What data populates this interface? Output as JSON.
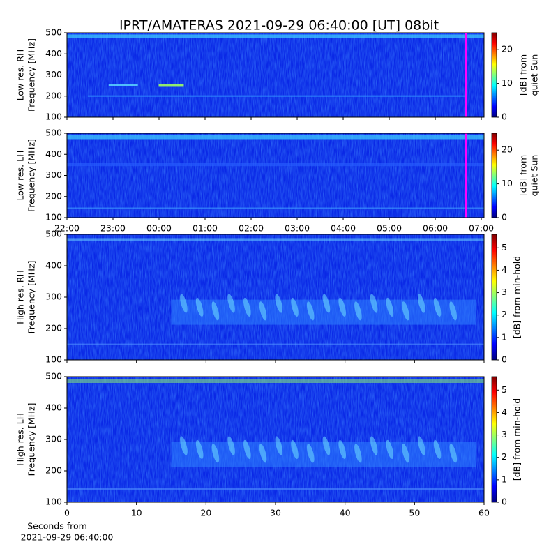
{
  "title": "IPRT/AMATERAS 2021-09-29 06:40:00 [UT]   08bit",
  "chart_data": [
    {
      "type": "spectrogram",
      "ylabel": [
        "Low res. RH",
        "Frequency [MHz]"
      ],
      "ylim": [
        100,
        500
      ],
      "yticks": [
        100,
        200,
        300,
        400,
        500
      ],
      "xlim": [
        22,
        31.06
      ],
      "xticks": [
        {
          "value": 22,
          "label": "22:00"
        },
        {
          "value": 23,
          "label": "23:00"
        },
        {
          "value": 24,
          "label": "00:00"
        },
        {
          "value": 25,
          "label": "01:00"
        },
        {
          "value": 26,
          "label": "02:00"
        },
        {
          "value": 27,
          "label": "03:00"
        },
        {
          "value": 28,
          "label": "04:00"
        },
        {
          "value": 29,
          "label": "05:00"
        },
        {
          "value": 30,
          "label": "06:00"
        },
        {
          "value": 31,
          "label": "07:00"
        }
      ],
      "xtick_labels": false,
      "marker_x": 30.667,
      "marker_color": "#ff00ff",
      "colorbar": {
        "label": [
          "[dB] from",
          "quiet Sun"
        ],
        "lim": [
          0,
          25
        ],
        "ticks": [
          0,
          10,
          20
        ],
        "colormap": "jet"
      }
    },
    {
      "type": "spectrogram",
      "ylabel": [
        "Low res. LH",
        "Frequency [MHz]"
      ],
      "ylim": [
        100,
        500
      ],
      "yticks": [
        100,
        200,
        300,
        400,
        500
      ],
      "xlim": [
        22,
        31.06
      ],
      "xticks": [
        {
          "value": 22,
          "label": "22:00"
        },
        {
          "value": 23,
          "label": "23:00"
        },
        {
          "value": 24,
          "label": "00:00"
        },
        {
          "value": 25,
          "label": "01:00"
        },
        {
          "value": 26,
          "label": "02:00"
        },
        {
          "value": 27,
          "label": "03:00"
        },
        {
          "value": 28,
          "label": "04:00"
        },
        {
          "value": 29,
          "label": "05:00"
        },
        {
          "value": 30,
          "label": "06:00"
        },
        {
          "value": 31,
          "label": "07:00"
        }
      ],
      "xtick_labels": true,
      "marker_x": 30.667,
      "marker_color": "#ff00ff",
      "colorbar": {
        "label": [
          "[dB] from",
          "quiet Sun"
        ],
        "lim": [
          0,
          25
        ],
        "ticks": [
          0,
          10,
          20
        ],
        "colormap": "jet"
      }
    },
    {
      "type": "spectrogram",
      "ylabel": [
        "High res. RH",
        "Frequency [MHz]"
      ],
      "ylim": [
        100,
        500
      ],
      "yticks": [
        100,
        200,
        300,
        400,
        500
      ],
      "xlim": [
        0,
        60
      ],
      "xticks": [
        0,
        10,
        20,
        30,
        40,
        50,
        60
      ],
      "xtick_labels": false,
      "colorbar": {
        "label": [
          "[dB] from min-hold"
        ],
        "lim": [
          0,
          5.6
        ],
        "ticks": [
          0,
          1,
          2,
          3,
          4,
          5
        ],
        "colormap": "jet"
      }
    },
    {
      "type": "spectrogram",
      "ylabel": [
        "High res. LH",
        "Frequency [MHz]"
      ],
      "ylim": [
        100,
        500
      ],
      "yticks": [
        100,
        200,
        300,
        400,
        500
      ],
      "xlim": [
        0,
        60
      ],
      "xticks": [
        0,
        10,
        20,
        30,
        40,
        50,
        60
      ],
      "xtick_labels": true,
      "xlabel": [
        "Seconds from",
        "2021-09-29 06:40:00"
      ],
      "colorbar": {
        "label": [
          "[dB] from min-hold"
        ],
        "lim": [
          0,
          5.6
        ],
        "ticks": [
          0,
          1,
          2,
          3,
          4,
          5
        ],
        "colormap": "jet"
      }
    }
  ]
}
